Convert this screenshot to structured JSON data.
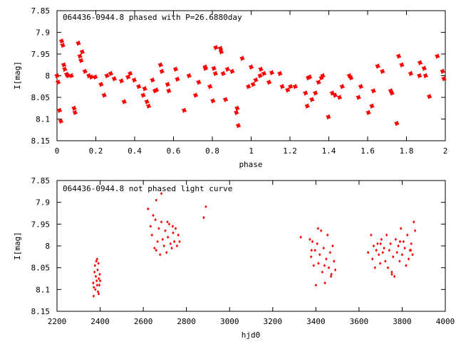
{
  "chart_data": [
    {
      "type": "scatter",
      "title": "064436-0944.8 phased with P=26.6880day",
      "xlabel": "phase",
      "ylabel": "I[mag]",
      "xlim": [
        0,
        2
      ],
      "ylim": [
        8.15,
        7.85
      ],
      "y_inverted": true,
      "grid": false,
      "marker": "star",
      "color": "#ff0000",
      "x_ticks": [
        0,
        0.2,
        0.4,
        0.6,
        0.8,
        1,
        1.2,
        1.4,
        1.6,
        1.8,
        2
      ],
      "x_tick_labels": [
        "0",
        "0.2",
        "0.4",
        "0.6",
        "0.8",
        "1",
        "1.2",
        "1.4",
        "1.6",
        "1.8",
        "2"
      ],
      "y_ticks": [
        7.85,
        7.9,
        7.95,
        8,
        8.05,
        8.1,
        8.15
      ],
      "y_tick_labels": [
        "7.85",
        "7.9",
        "7.95",
        "8",
        "8.05",
        "8.1",
        "8.15"
      ],
      "series": [
        {
          "x": [
            0.0,
            0.006,
            0.013,
            0.02,
            0.024,
            0.03,
            0.035,
            0.04,
            0.05,
            0.056,
            0.074,
            0.088,
            0.093,
            0.11,
            0.118,
            0.124,
            0.13,
            0.144,
            0.164,
            0.176,
            0.197,
            0.227,
            0.243,
            0.257,
            0.277,
            0.295,
            0.332,
            0.346,
            0.366,
            0.377,
            0.398,
            0.421,
            0.444,
            0.452,
            0.463,
            0.472,
            0.492,
            0.505,
            0.512,
            0.533,
            0.54,
            0.57,
            0.576,
            0.611,
            0.62,
            0.655,
            0.68,
            0.714,
            0.73,
            0.764,
            0.764,
            0.788,
            0.803,
            0.808,
            0.816,
            0.818,
            0.842,
            0.846,
            0.856,
            0.868,
            0.878,
            0.902,
            0.924,
            0.928,
            0.934,
            0.954,
            0.986,
            1.0,
            1.01,
            1.024,
            1.046,
            1.05,
            1.066,
            1.092,
            1.106,
            1.148,
            1.16,
            1.188,
            1.203,
            1.227,
            1.28,
            1.289,
            1.294,
            1.301,
            1.313,
            1.331,
            1.347,
            1.362,
            1.369,
            1.398,
            1.418,
            1.432,
            1.455,
            1.469,
            1.506,
            1.514,
            1.553,
            1.565,
            1.604,
            1.622,
            1.63,
            1.652,
            1.676,
            1.719,
            1.725,
            1.75,
            1.76,
            1.776,
            1.822,
            1.867,
            1.87,
            1.891,
            1.898,
            1.918,
            1.959,
            1.986,
            1.993
          ],
          "y": [
            8.0,
            8.015,
            8.08,
            8.105,
            7.92,
            7.93,
            7.975,
            7.985,
            7.997,
            8.0,
            8.0,
            8.075,
            8.085,
            7.925,
            7.955,
            7.965,
            7.945,
            7.99,
            8.0,
            8.003,
            8.003,
            8.02,
            8.045,
            8.0,
            7.995,
            8.007,
            8.012,
            8.06,
            8.003,
            7.995,
            8.01,
            8.025,
            8.045,
            8.03,
            8.06,
            8.07,
            8.01,
            8.035,
            8.033,
            7.975,
            7.99,
            8.02,
            8.035,
            7.985,
            8.008,
            8.08,
            8.0,
            8.045,
            8.015,
            7.98,
            7.983,
            8.025,
            8.058,
            7.983,
            7.995,
            7.935,
            7.937,
            7.945,
            7.995,
            8.055,
            7.985,
            7.99,
            8.085,
            8.075,
            8.115,
            7.96,
            8.025,
            7.98,
            8.02,
            8.01,
            8.0,
            7.985,
            7.995,
            8.015,
            7.993,
            7.995,
            8.025,
            8.033,
            8.025,
            8.025,
            8.04,
            8.07,
            8.005,
            8.003,
            8.055,
            8.04,
            8.015,
            8.005,
            8.0,
            8.095,
            8.04,
            8.045,
            8.05,
            8.025,
            8.0,
            8.005,
            8.05,
            8.025,
            8.085,
            8.07,
            8.035,
            7.978,
            7.99,
            8.035,
            8.04,
            8.11,
            7.955,
            7.975,
            7.995,
            8.0,
            7.97,
            7.983,
            8.0,
            8.048,
            7.955,
            7.99,
            8.007
          ]
        }
      ]
    },
    {
      "type": "scatter",
      "title": "064436-0944.8 not phased light curve",
      "xlabel": "hjd0",
      "ylabel": "I[mag]",
      "xlim": [
        2200,
        4000
      ],
      "ylim": [
        8.15,
        7.85
      ],
      "y_inverted": true,
      "grid": false,
      "marker": "diamond",
      "color": "#ff0000",
      "x_ticks": [
        2200,
        2400,
        2600,
        2800,
        3000,
        3200,
        3400,
        3600,
        3800,
        4000
      ],
      "x_tick_labels": [
        "2200",
        "2400",
        "2600",
        "2800",
        "3000",
        "3200",
        "3400",
        "3600",
        "3800",
        "4000"
      ],
      "y_ticks": [
        7.85,
        7.9,
        7.95,
        8,
        8.05,
        8.1,
        8.15
      ],
      "y_tick_labels": [
        "7.85",
        "7.9",
        "7.95",
        "8",
        "8.05",
        "8.1",
        "8.15"
      ],
      "series": [
        {
          "x": [
            2368,
            2371,
            2374,
            2376,
            2378,
            2380,
            2382,
            2384,
            2386,
            2388,
            2390,
            2392,
            2394,
            2396,
            2398,
            2400,
            2370,
            2386,
            2393,
            2622,
            2634,
            2640,
            2646,
            2652,
            2656,
            2660,
            2666,
            2672,
            2678,
            2684,
            2690,
            2696,
            2702,
            2708,
            2714,
            2720,
            2726,
            2732,
            2738,
            2744,
            2750,
            2756,
            2762,
            2768,
            2660,
            2684,
            2712,
            2736,
            2880,
            2890,
            3330,
            3372,
            3378,
            3384,
            3390,
            3396,
            3400,
            3406,
            3412,
            3418,
            3424,
            3430,
            3436,
            3442,
            3448,
            3454,
            3460,
            3466,
            3472,
            3478,
            3484,
            3490,
            3380,
            3410,
            3440,
            3470,
            3642,
            3656,
            3662,
            3668,
            3674,
            3680,
            3686,
            3692,
            3698,
            3704,
            3710,
            3716,
            3722,
            3728,
            3734,
            3740,
            3746,
            3752,
            3758,
            3764,
            3770,
            3776,
            3782,
            3788,
            3794,
            3800,
            3806,
            3812,
            3818,
            3824,
            3830,
            3836,
            3842,
            3848,
            3854,
            3860,
            3700,
            3752,
            3790,
            3840
          ],
          "y": [
            8.085,
            8.095,
            8.06,
            8.045,
            8.1,
            8.07,
            8.035,
            8.08,
            8.09,
            8.055,
            8.105,
            8.04,
            8.075,
            8.09,
            8.065,
            8.08,
            8.115,
            8.03,
            8.11,
            7.915,
            7.955,
            7.975,
            7.93,
            8.005,
            7.94,
            8.01,
            7.99,
            7.96,
            8.02,
            7.945,
            7.985,
            8.0,
            7.965,
            8.015,
            7.98,
            7.95,
            7.995,
            8.005,
            7.97,
            7.99,
            7.96,
            8.0,
            7.975,
            7.99,
            7.895,
            7.88,
            7.945,
            7.955,
            7.935,
            7.91,
            7.98,
            7.985,
            8.025,
            7.99,
            8.045,
            8.01,
            8.09,
            7.995,
            8.04,
            8.02,
            7.965,
            8.06,
            8.005,
            8.085,
            8.03,
            7.975,
            8.05,
            8.015,
            8.065,
            8.0,
            8.035,
            8.055,
            8.01,
            7.96,
            8.045,
            8.07,
            8.015,
            7.975,
            8.03,
            8.0,
            8.05,
            8.01,
            7.995,
            8.02,
            8.04,
            7.985,
            8.015,
            8.005,
            8.035,
            7.975,
            8.05,
            8.01,
            7.995,
            8.06,
            8.025,
            8.07,
            7.985,
            8.015,
            8.0,
            8.035,
            7.96,
            8.02,
            7.99,
            8.005,
            8.045,
            7.975,
            8.03,
            8.01,
            7.995,
            8.02,
            7.945,
            7.965,
            7.995,
            8.065,
            7.99,
            8.01
          ]
        }
      ]
    }
  ]
}
